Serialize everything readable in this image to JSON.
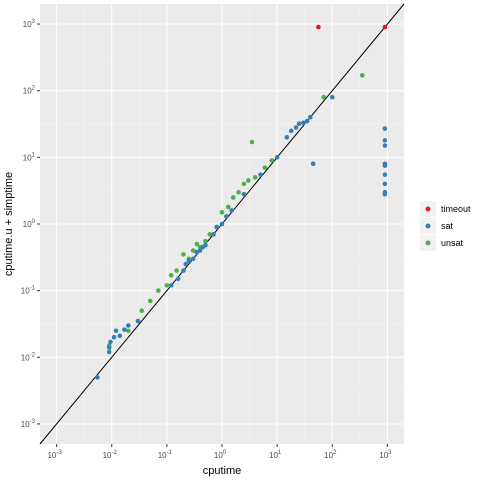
{
  "chart_data": {
    "type": "scatter",
    "xlabel": "cputime",
    "ylabel": "cputime.u + simptime",
    "x_scale": "log10",
    "y_scale": "log10",
    "xlim": [
      0.0005,
      2000
    ],
    "ylim": [
      0.0005,
      2000
    ],
    "grid": true,
    "panel_background": "#ebebeb",
    "reference_line": "y = x",
    "legend_position": "right",
    "tick_base": "10",
    "x_ticks": [
      {
        "exp": "-3",
        "value": 0.001
      },
      {
        "exp": "-2",
        "value": 0.01
      },
      {
        "exp": "-1",
        "value": 0.1
      },
      {
        "exp": "0",
        "value": 1
      },
      {
        "exp": "1",
        "value": 10
      },
      {
        "exp": "2",
        "value": 100
      },
      {
        "exp": "3",
        "value": 1000
      }
    ],
    "y_ticks": [
      {
        "exp": "-3",
        "value": 0.001
      },
      {
        "exp": "-2",
        "value": 0.01
      },
      {
        "exp": "-1",
        "value": 0.1
      },
      {
        "exp": "0",
        "value": 1
      },
      {
        "exp": "1",
        "value": 10
      },
      {
        "exp": "2",
        "value": 100
      },
      {
        "exp": "3",
        "value": 1000
      }
    ],
    "series": [
      {
        "name": "timeout",
        "color": "#e41a1c",
        "points": [
          [
            56,
            900
          ],
          [
            900,
            900
          ]
        ]
      },
      {
        "name": "sat",
        "color": "#377eb8",
        "points": [
          [
            0.0055,
            0.005
          ],
          [
            0.009,
            0.012
          ],
          [
            0.009,
            0.014
          ],
          [
            0.0095,
            0.017
          ],
          [
            0.011,
            0.02
          ],
          [
            0.012,
            0.025
          ],
          [
            0.014,
            0.021
          ],
          [
            0.017,
            0.026
          ],
          [
            0.02,
            0.03
          ],
          [
            0.03,
            0.035
          ],
          [
            0.12,
            0.12
          ],
          [
            0.16,
            0.15
          ],
          [
            0.2,
            0.2
          ],
          [
            0.22,
            0.25
          ],
          [
            0.25,
            0.28
          ],
          [
            0.3,
            0.3
          ],
          [
            0.35,
            0.38
          ],
          [
            0.4,
            0.4
          ],
          [
            0.45,
            0.45
          ],
          [
            0.5,
            0.48
          ],
          [
            0.7,
            0.7
          ],
          [
            0.8,
            0.9
          ],
          [
            1.0,
            1.0
          ],
          [
            1.2,
            1.3
          ],
          [
            1.5,
            1.6
          ],
          [
            2.5,
            2.8
          ],
          [
            5,
            5.5
          ],
          [
            10,
            10
          ],
          [
            15,
            20
          ],
          [
            18,
            25
          ],
          [
            22,
            28
          ],
          [
            25,
            32
          ],
          [
            30,
            33
          ],
          [
            35,
            35
          ],
          [
            40,
            40
          ],
          [
            45,
            8
          ],
          [
            100,
            80
          ],
          [
            900,
            27
          ],
          [
            900,
            18
          ],
          [
            900,
            15
          ],
          [
            900,
            8
          ],
          [
            900,
            7.5
          ],
          [
            900,
            5.5
          ],
          [
            900,
            4
          ],
          [
            900,
            3
          ],
          [
            900,
            2.8
          ]
        ]
      },
      {
        "name": "unsat",
        "color": "#4daf4a",
        "points": [
          [
            0.009,
            0.015
          ],
          [
            0.02,
            0.025
          ],
          [
            0.03,
            0.035
          ],
          [
            0.035,
            0.05
          ],
          [
            0.05,
            0.07
          ],
          [
            0.07,
            0.1
          ],
          [
            0.1,
            0.12
          ],
          [
            0.12,
            0.17
          ],
          [
            0.15,
            0.2
          ],
          [
            0.2,
            0.35
          ],
          [
            0.25,
            0.3
          ],
          [
            0.3,
            0.4
          ],
          [
            0.35,
            0.5
          ],
          [
            0.4,
            0.45
          ],
          [
            0.5,
            0.55
          ],
          [
            0.6,
            0.7
          ],
          [
            0.8,
            0.9
          ],
          [
            1.0,
            1.5
          ],
          [
            1.3,
            1.8
          ],
          [
            1.6,
            2.5
          ],
          [
            2.0,
            3.0
          ],
          [
            2.5,
            4.0
          ],
          [
            3.0,
            4.5
          ],
          [
            3.5,
            17
          ],
          [
            4,
            5
          ],
          [
            6,
            7
          ],
          [
            8,
            9
          ],
          [
            70,
            80
          ],
          [
            350,
            170
          ]
        ]
      }
    ]
  }
}
